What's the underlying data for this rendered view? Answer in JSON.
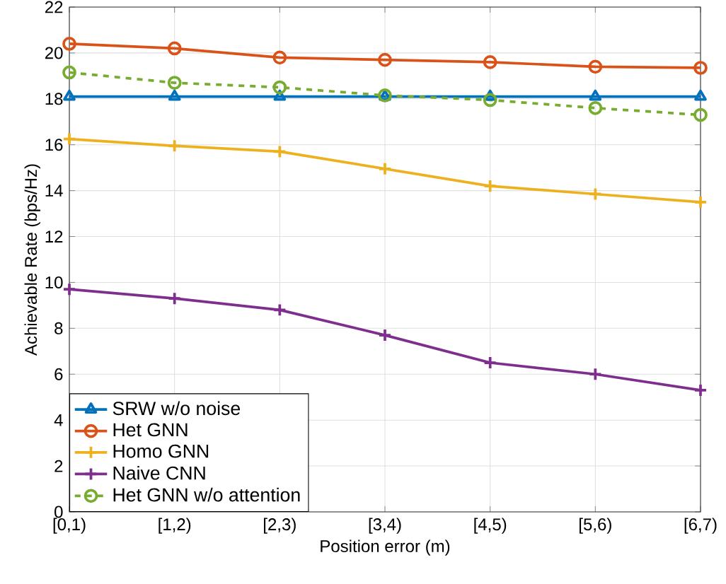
{
  "chart_data": {
    "type": "line",
    "xlabel": "Position error (m)",
    "ylabel": "Achievable Rate (bps/Hz)",
    "categories": [
      "[0,1)",
      "[1,2)",
      "[2,3)",
      "[3,4)",
      "[4,5)",
      "[5,6)",
      "[6,7)"
    ],
    "ylim": [
      0,
      22
    ],
    "yticks": [
      0,
      2,
      4,
      6,
      8,
      10,
      12,
      14,
      16,
      18,
      20,
      22
    ],
    "grid": true,
    "legend": "bottom left",
    "series": [
      {
        "name": "SRW w/o noise",
        "color": "#0072bd",
        "marker": "triangle",
        "line_style": "solid",
        "values": [
          18.1,
          18.1,
          18.1,
          18.1,
          18.1,
          18.1,
          18.1
        ]
      },
      {
        "name": "Het GNN",
        "color": "#d95319",
        "marker": "circle",
        "line_style": "solid",
        "values": [
          20.4,
          20.2,
          19.8,
          19.7,
          19.6,
          19.4,
          19.35
        ]
      },
      {
        "name": "Homo GNN",
        "color": "#edb120",
        "marker": "cross",
        "line_style": "solid",
        "values": [
          16.25,
          15.95,
          15.7,
          14.95,
          14.2,
          13.85,
          13.5
        ]
      },
      {
        "name": "Naive CNN",
        "color": "#7e2f8e",
        "marker": "cross",
        "line_style": "solid",
        "values": [
          9.7,
          9.3,
          8.8,
          7.7,
          6.5,
          6.0,
          5.3
        ]
      },
      {
        "name": "Het GNN w/o attention",
        "color": "#77ac30",
        "marker": "circle",
        "line_style": "dashed",
        "values": [
          19.15,
          18.7,
          18.5,
          18.15,
          17.95,
          17.6,
          17.3
        ]
      }
    ]
  }
}
